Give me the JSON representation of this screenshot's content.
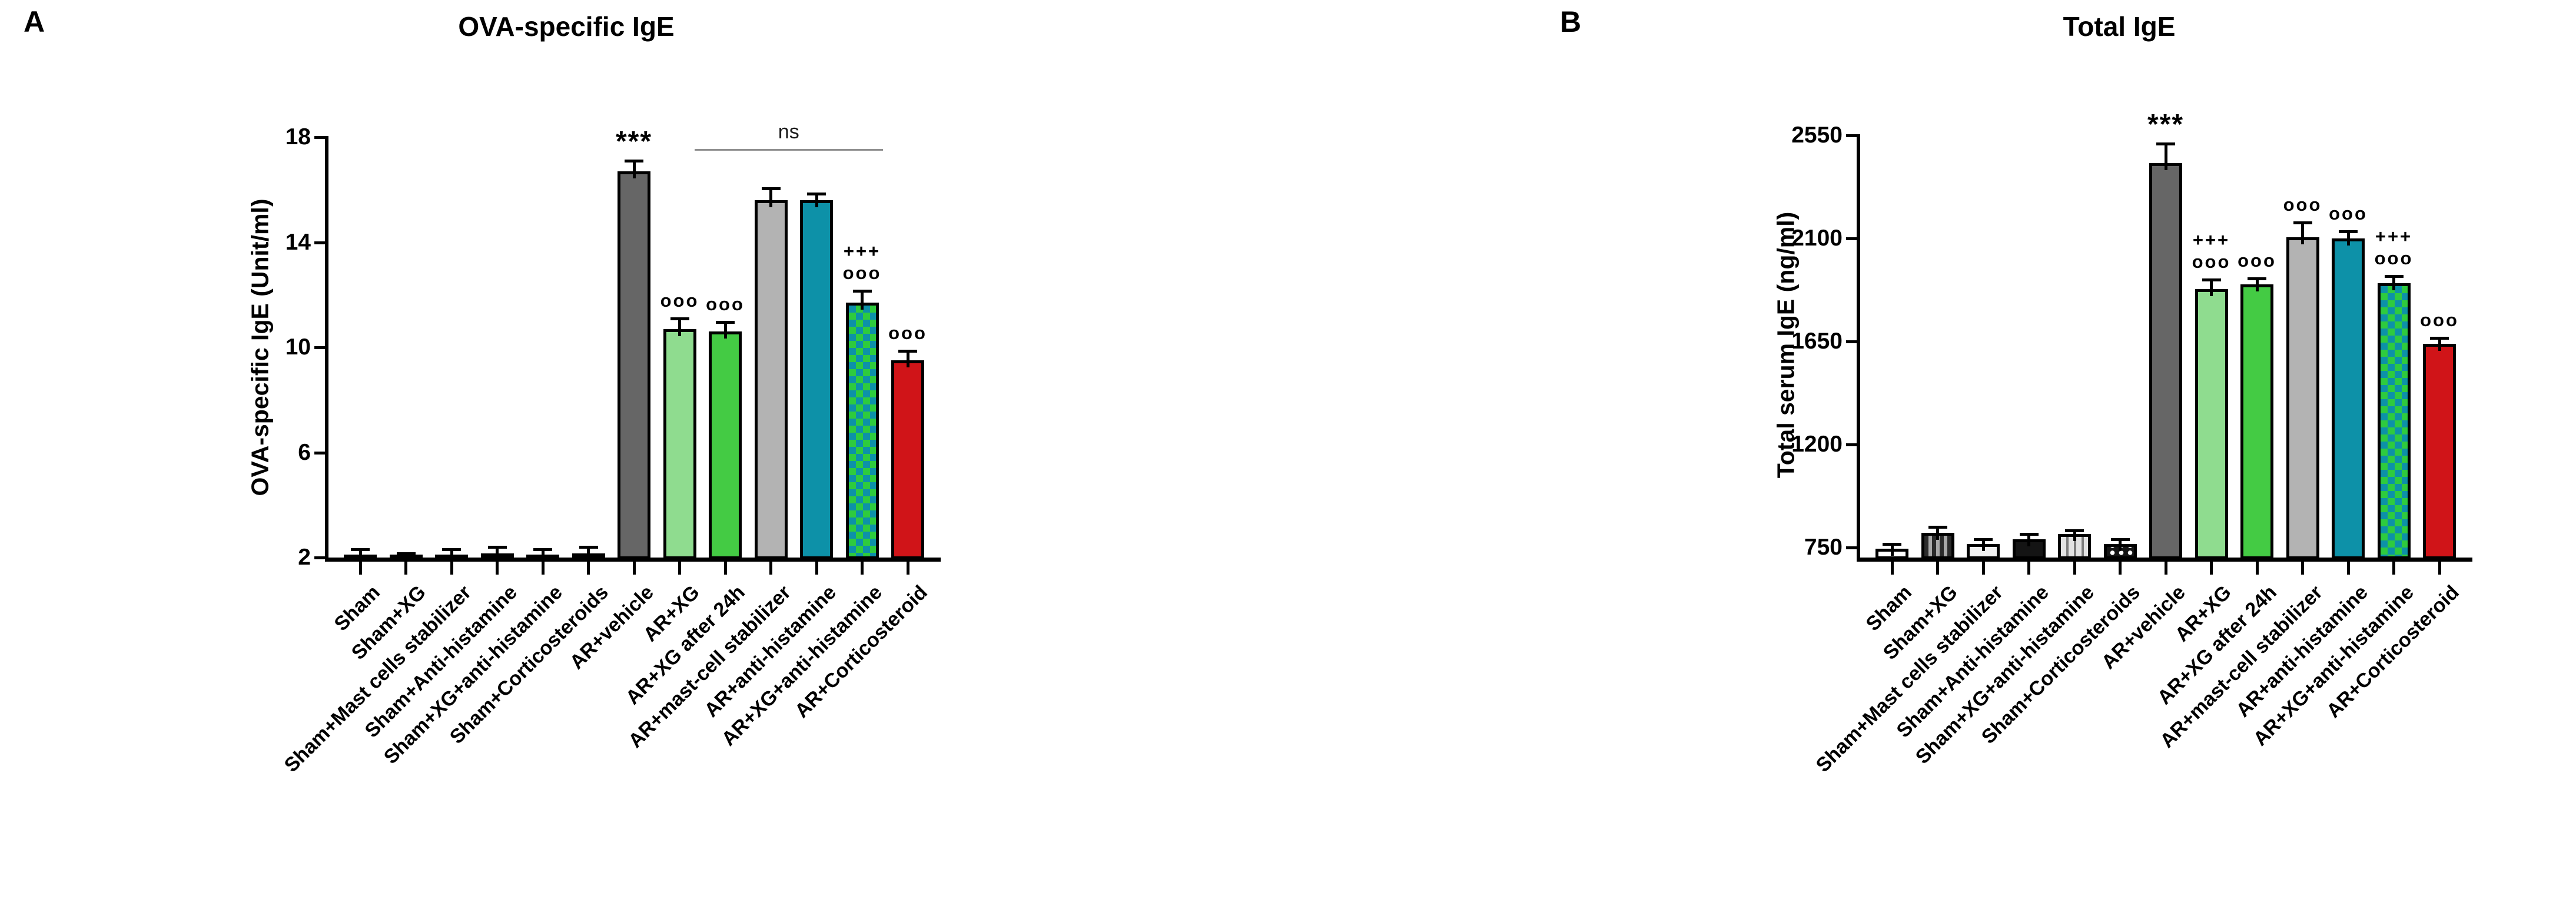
{
  "chart_data": [
    {
      "type": "bar",
      "panel_label": "A",
      "title": "OVA-specific IgE",
      "ylabel": "OVA-specific IgE (Unit/ml)",
      "xlabel": "",
      "yticks": [
        2,
        6,
        10,
        14,
        18
      ],
      "ylim": [
        2,
        18
      ],
      "grid": false,
      "legend": false,
      "categories": [
        "Sham",
        "Sham+XG",
        "Sham+Mast cells stabilizer",
        "Sham+Anti-histamine",
        "Sham+XG+anti-histamine",
        "Sham+Corticosteroids",
        "AR+vehicle",
        "AR+XG",
        "AR+XG after 24h",
        "AR+mast-cell stabilizer",
        "AR+anti-histamine",
        "AR+XG+anti-histamine",
        "AR+Corticosteroid"
      ],
      "values": [
        2.1,
        2.05,
        2.1,
        2.15,
        2.1,
        2.15,
        16.7,
        10.7,
        10.6,
        15.6,
        15.6,
        11.7,
        9.5
      ],
      "errors": [
        0.25,
        0.15,
        0.25,
        0.3,
        0.25,
        0.3,
        0.45,
        0.45,
        0.4,
        0.5,
        0.3,
        0.5,
        0.4
      ],
      "sig_labels": [
        [],
        [],
        [],
        [],
        [],
        [],
        [
          "***"
        ],
        [
          "ooo"
        ],
        [
          "ooo"
        ],
        [],
        [],
        [
          "+++",
          "ooo"
        ],
        [
          "ooo"
        ]
      ],
      "ns_bracket": {
        "label": "ns",
        "from_index": 7,
        "to_index": 12
      }
    },
    {
      "type": "bar",
      "panel_label": "B",
      "title": "Total IgE",
      "ylabel": "Total serum IgE (ng/ml)",
      "xlabel": "",
      "yticks": [
        750,
        1200,
        1650,
        2100,
        2550
      ],
      "ylim": [
        706,
        2550
      ],
      "grid": false,
      "legend": false,
      "categories": [
        "Sham",
        "Sham+XG",
        "Sham+Mast cells stabilizer",
        "Sham+Anti-histamine",
        "Sham+XG+anti-histamine",
        "Sham+Corticosteroids",
        "AR+vehicle",
        "AR+XG",
        "AR+XG after 24h",
        "AR+mast-cell stabilizer",
        "AR+anti-histamine",
        "AR+XG+anti-histamine",
        "AR+Corticosteroid"
      ],
      "values": [
        745,
        815,
        765,
        785,
        810,
        765,
        2430,
        1880,
        1900,
        2105,
        2100,
        1905,
        1640
      ],
      "errors": [
        25,
        30,
        25,
        30,
        20,
        25,
        90,
        45,
        30,
        70,
        35,
        35,
        30
      ],
      "sig_labels": [
        [],
        [],
        [],
        [],
        [],
        [],
        [
          "***"
        ],
        [
          "+++",
          "ooo"
        ],
        [
          "ooo"
        ],
        [
          "ooo"
        ],
        [
          "ooo"
        ],
        [
          "+++",
          "ooo"
        ],
        [
          "ooo"
        ]
      ],
      "ns_bracket": null
    }
  ],
  "bar_styles": [
    {
      "category": "Sham",
      "fill": "white-hstripe",
      "border": "#000000"
    },
    {
      "category": "Sham+XG",
      "fill": "gray-vstripe",
      "border": "#000000"
    },
    {
      "category": "Sham+Mast cells stabilizer",
      "fill": "white",
      "border": "#000000"
    },
    {
      "category": "Sham+Anti-histamine",
      "fill": "black",
      "border": "#000000"
    },
    {
      "category": "Sham+XG+anti-histamine",
      "fill": "lightgray-vstripe",
      "border": "#000000"
    },
    {
      "category": "Sham+Corticosteroids",
      "fill": "black-dots",
      "border": "#000000"
    },
    {
      "category": "AR+vehicle",
      "fill": "solid:#666666",
      "border": "#000000"
    },
    {
      "category": "AR+XG",
      "fill": "solid:#8fdc8f",
      "border": "#000000"
    },
    {
      "category": "AR+XG after 24h",
      "fill": "solid:#44cb44",
      "border": "#000000"
    },
    {
      "category": "AR+mast-cell stabilizer",
      "fill": "solid:#b3b3b3",
      "border": "#000000"
    },
    {
      "category": "AR+anti-histamine",
      "fill": "solid:#0d91a8",
      "border": "#000000"
    },
    {
      "category": "AR+XG+anti-histamine",
      "fill": "checker",
      "border": "#000000"
    },
    {
      "category": "AR+Corticosteroid",
      "fill": "solid:#d01418",
      "border": "#000000"
    }
  ],
  "colors": {
    "background": "#ffffff",
    "axis": "#000000",
    "ns_line": "#8f8f8f",
    "dark_gray_bar": "#666666",
    "light_green_bar": "#8fdc8f",
    "green_bar": "#44cb44",
    "light_gray_bar": "#b3b3b3",
    "teal_bar": "#0d91a8",
    "red_bar": "#d01418"
  }
}
